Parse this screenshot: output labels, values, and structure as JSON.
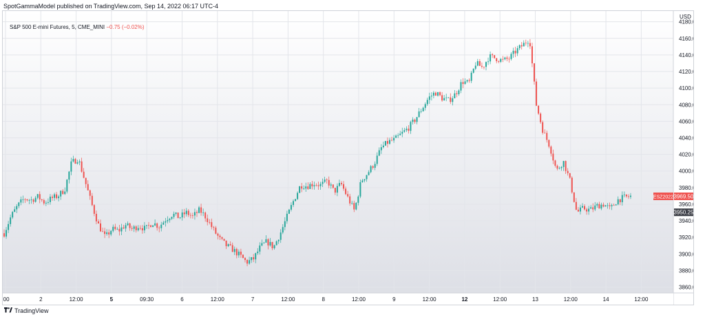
{
  "header": {
    "publish_text": "SpotGammaModel published on TradingView.com, Sep 14, 2022 06:17 UTC-4"
  },
  "legend": {
    "symbol_text": "S&P 500 E-mini Futures, 5, CME_MINI",
    "change_text": "−0.75 (−0.02%)"
  },
  "footer": {
    "brand": "TradingView",
    "logo_icon": "tradingview-logo-icon"
  },
  "colors": {
    "up": "#26a69a",
    "down": "#ef5350",
    "background_top": "#ffffff",
    "background_bottom": "#dcdee5",
    "grid": "#e3e5ea",
    "axis_text": "#131722",
    "label_red": "#ef5350",
    "label_dark": "#3d3f47"
  },
  "chart_data": {
    "type": "candlestick",
    "title": "S&P 500 E-mini Futures, 5, CME_MINI",
    "currency_label": "USD",
    "x_ticks": [
      ":00",
      "2",
      "12:00",
      "5",
      "09:30",
      "6",
      "12:00",
      "7",
      "12:00",
      "8",
      "12:00",
      "9",
      "12:00",
      "12",
      "12:00",
      "13",
      "12:00",
      "14",
      "12:00"
    ],
    "x_ticks_bold": [
      "5",
      "12"
    ],
    "y_ticks": [
      3860,
      3880,
      3900,
      3920,
      3940,
      3960,
      3980,
      4000,
      4020,
      4040,
      4060,
      4080,
      4100,
      4120,
      4140,
      4160,
      4180
    ],
    "ylim": [
      3853,
      4193
    ],
    "grid": true,
    "price_labels": [
      {
        "text": "ESZ2022",
        "style": "red"
      },
      {
        "text": "3969.50",
        "value": 3969.5,
        "style": "red"
      },
      {
        "text": "3950.25",
        "value": 3950.25,
        "style": "dark"
      }
    ],
    "price_path": [
      {
        "x": 0,
        "y": 3925
      },
      {
        "x": 1,
        "y": 3945
      },
      {
        "x": 2,
        "y": 3958
      },
      {
        "x": 3,
        "y": 3967
      },
      {
        "x": 4,
        "y": 3965
      },
      {
        "x": 5,
        "y": 3969
      },
      {
        "x": 6,
        "y": 3962
      },
      {
        "x": 7,
        "y": 3967
      },
      {
        "x": 8,
        "y": 3970
      },
      {
        "x": 9,
        "y": 3978
      },
      {
        "x": 10,
        "y": 4010
      },
      {
        "x": 11,
        "y": 4015
      },
      {
        "x": 12,
        "y": 3988
      },
      {
        "x": 13,
        "y": 3960
      },
      {
        "x": 14,
        "y": 3935
      },
      {
        "x": 15,
        "y": 3920
      },
      {
        "x": 16,
        "y": 3930
      },
      {
        "x": 17,
        "y": 3928
      },
      {
        "x": 18,
        "y": 3935
      },
      {
        "x": 19,
        "y": 3930
      },
      {
        "x": 20,
        "y": 3934
      },
      {
        "x": 21,
        "y": 3930
      },
      {
        "x": 22,
        "y": 3938
      },
      {
        "x": 23,
        "y": 3933
      },
      {
        "x": 24,
        "y": 3942
      },
      {
        "x": 25,
        "y": 3948
      },
      {
        "x": 26,
        "y": 3944
      },
      {
        "x": 27,
        "y": 3950
      },
      {
        "x": 28,
        "y": 3945
      },
      {
        "x": 29,
        "y": 3953
      },
      {
        "x": 30,
        "y": 3944
      },
      {
        "x": 31,
        "y": 3930
      },
      {
        "x": 32,
        "y": 3918
      },
      {
        "x": 33,
        "y": 3910
      },
      {
        "x": 34,
        "y": 3905
      },
      {
        "x": 35,
        "y": 3898
      },
      {
        "x": 36,
        "y": 3890
      },
      {
        "x": 37,
        "y": 3894
      },
      {
        "x": 38,
        "y": 3908
      },
      {
        "x": 39,
        "y": 3915
      },
      {
        "x": 40,
        "y": 3908
      },
      {
        "x": 41,
        "y": 3925
      },
      {
        "x": 42,
        "y": 3945
      },
      {
        "x": 43,
        "y": 3965
      },
      {
        "x": 44,
        "y": 3983
      },
      {
        "x": 45,
        "y": 3982
      },
      {
        "x": 46,
        "y": 3985
      },
      {
        "x": 47,
        "y": 3983
      },
      {
        "x": 48,
        "y": 3988
      },
      {
        "x": 49,
        "y": 3975
      },
      {
        "x": 50,
        "y": 3985
      },
      {
        "x": 51,
        "y": 3968
      },
      {
        "x": 52,
        "y": 3952
      },
      {
        "x": 53,
        "y": 3988
      },
      {
        "x": 54,
        "y": 3998
      },
      {
        "x": 55,
        "y": 4010
      },
      {
        "x": 56,
        "y": 4028
      },
      {
        "x": 57,
        "y": 4035
      },
      {
        "x": 58,
        "y": 4038
      },
      {
        "x": 59,
        "y": 4045
      },
      {
        "x": 60,
        "y": 4052
      },
      {
        "x": 61,
        "y": 4062
      },
      {
        "x": 62,
        "y": 4075
      },
      {
        "x": 63,
        "y": 4088
      },
      {
        "x": 64,
        "y": 4095
      },
      {
        "x": 65,
        "y": 4088
      },
      {
        "x": 66,
        "y": 4085
      },
      {
        "x": 67,
        "y": 4093
      },
      {
        "x": 68,
        "y": 4108
      },
      {
        "x": 69,
        "y": 4106
      },
      {
        "x": 70,
        "y": 4130
      },
      {
        "x": 71,
        "y": 4125
      },
      {
        "x": 72,
        "y": 4138
      },
      {
        "x": 73,
        "y": 4136
      },
      {
        "x": 74,
        "y": 4133
      },
      {
        "x": 75,
        "y": 4136
      },
      {
        "x": 76,
        "y": 4145
      },
      {
        "x": 77,
        "y": 4152
      },
      {
        "x": 78,
        "y": 4160
      },
      {
        "x": 79,
        "y": 4080
      },
      {
        "x": 80,
        "y": 4048
      },
      {
        "x": 81,
        "y": 4030
      },
      {
        "x": 82,
        "y": 4000
      },
      {
        "x": 83,
        "y": 4012
      },
      {
        "x": 84,
        "y": 3988
      },
      {
        "x": 85,
        "y": 3950
      },
      {
        "x": 86,
        "y": 3955
      },
      {
        "x": 87,
        "y": 3953
      },
      {
        "x": 88,
        "y": 3958
      },
      {
        "x": 89,
        "y": 3960
      },
      {
        "x": 90,
        "y": 3954
      },
      {
        "x": 91,
        "y": 3965
      },
      {
        "x": 92,
        "y": 3968
      },
      {
        "x": 93,
        "y": 3969.5
      }
    ]
  }
}
